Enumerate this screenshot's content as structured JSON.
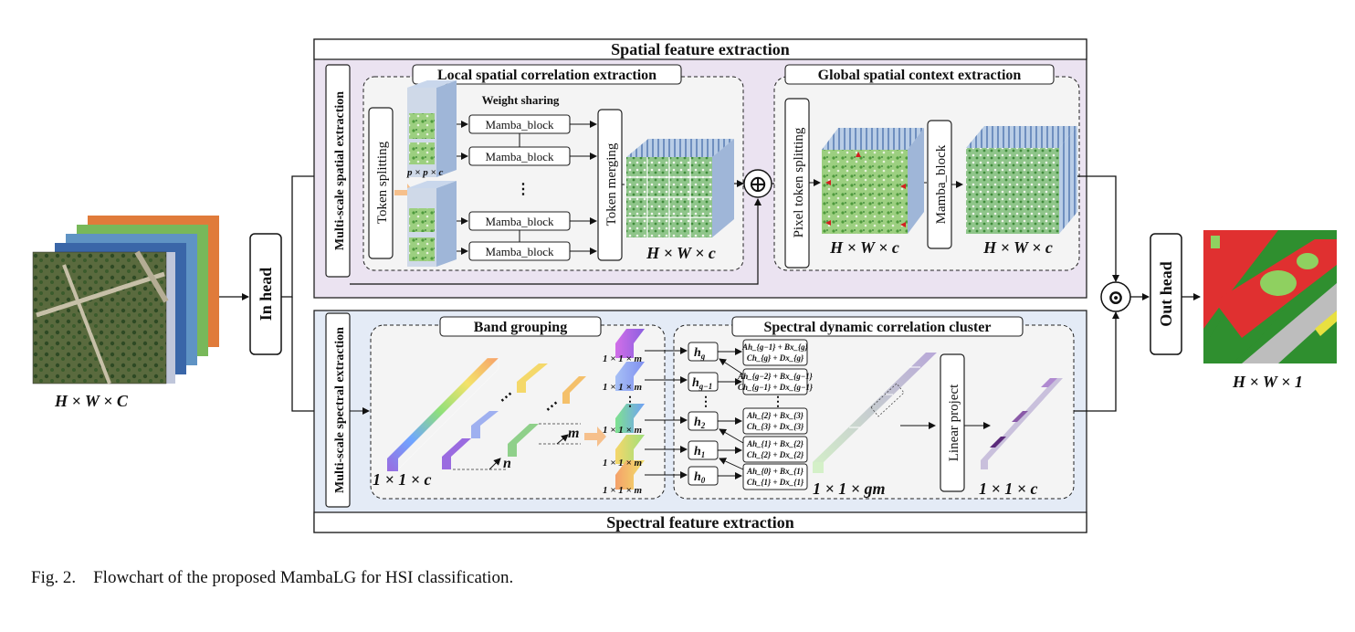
{
  "input_label": "H × W × C",
  "output_label": "H × W × 1",
  "in_head": "In head",
  "out_head": "Out head",
  "spatial": {
    "title": "Spatial feature extraction",
    "multiscale_label": "Multi-scale spatial extraction",
    "local_title": "Local spatial correlation extraction",
    "token_splitting": "Token splitting",
    "weight_sharing": "Weight sharing",
    "patch_label": "p × p × c",
    "mamba_block": "Mamba_block",
    "dots": "⋮",
    "token_merging": "Token merging",
    "merged_label": "H × W × c",
    "global_title": "Global spatial context extraction",
    "pixel_token_splitting": "Pixel token splitting",
    "pixel_label": "H × W × c",
    "global_mamba": "Mamba_block",
    "global_out_label": "H × W × c"
  },
  "spectral": {
    "title": "Spectral feature extraction",
    "multiscale_label": "Multi-scale spectral extraction",
    "band_title": "Band grouping",
    "band_label": "1 × 1 × c",
    "n": "n",
    "m": "m",
    "dots": "⋮",
    "hdots": "⋯",
    "group_label": "1 × 1 × m",
    "cluster_title": "Spectral dynamic correlation cluster",
    "states": [
      "h",
      "h",
      "h",
      "h",
      "h"
    ],
    "state_subs": [
      "g",
      "g−1",
      "2",
      "1",
      "0"
    ],
    "eq_top": [
      "Ah_{g−1} + Bx_{g}",
      "Ah_{g−2} + Bx_{g−1}",
      "Ah_{2} + Bx_{3}",
      "Ah_{1} + Bx_{2}",
      "Ah_{0} + Bx_{1}"
    ],
    "eq_bottom": [
      "Ch_{g} + Dx_{g}",
      "Ch_{g−1} + Dx_{g−1}",
      "Ch_{3} + Dx_{3}",
      "Ch_{2} + Dx_{2}",
      "Ch_{1} + Dx_{1}"
    ],
    "concat_label": "1 × 1 × gm",
    "linear_project": "Linear project",
    "out_label": "1 × 1 × c"
  },
  "fusion_symbol": "⊙",
  "add_symbol": "⊕",
  "caption": "Fig. 2.    Flowchart of the proposed MambaLG for HSI classification.",
  "colors": {
    "spatial_bg": "#ebe3f1",
    "spectral_bg": "#e4ebf6",
    "inner_bg": "#f4f4f4",
    "class_red": "#e03030",
    "class_green": "#2f8f2f",
    "class_light": "#8fd060",
    "class_gray": "#bdbdbd"
  }
}
